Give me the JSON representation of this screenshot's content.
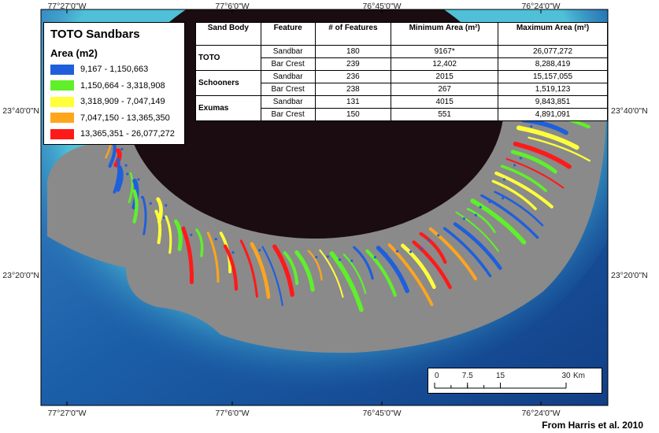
{
  "map": {
    "coordinates": {
      "top": [
        "77°27'0\"W",
        "77°6'0\"W",
        "76°45'0\"W",
        "76°24'0\"W"
      ],
      "bottom": [
        "77°27'0\"W",
        "77°6'0\"W",
        "76°45'0\"W",
        "76°24'0\"W"
      ],
      "left": [
        "23°40'0\"N",
        "23°20'0\"N"
      ],
      "right": [
        "23°40'0\"N",
        "23°20'0\"N"
      ]
    },
    "legend": {
      "title": "TOTO Sandbars",
      "subtitle": "Area (m2)",
      "items": [
        {
          "label": "9,167 - 1,150,663",
          "color": "#1f5fdc"
        },
        {
          "label": "1,150,664 - 3,318,908",
          "color": "#5ff02a"
        },
        {
          "label": "3,318,909 - 7,047,149",
          "color": "#ffff3a"
        },
        {
          "label": "7,047,150 - 13,365,350",
          "color": "#ffa51c"
        },
        {
          "label": "13,365,351 - 26,077,272",
          "color": "#ff1a1a"
        }
      ]
    },
    "table": {
      "headers": [
        "Sand Body",
        "Feature",
        "# of Features",
        "Minimum Area (m²)",
        "Maximum Area (m²)"
      ],
      "groups": [
        {
          "sand_body": "TOTO",
          "rows": [
            [
              "Sandbar",
              "180",
              "9167*",
              "26,077,272"
            ],
            [
              "Bar Crest",
              "239",
              "12,402",
              "8,288,419"
            ]
          ]
        },
        {
          "sand_body": "Schooners",
          "rows": [
            [
              "Sandbar",
              "236",
              "2015",
              "15,157,055"
            ],
            [
              "Bar Crest",
              "238",
              "267",
              "1,519,123"
            ]
          ]
        },
        {
          "sand_body": "Exumas",
          "rows": [
            [
              "Sandbar",
              "131",
              "4015",
              "9,843,851"
            ],
            [
              "Bar Crest",
              "150",
              "551",
              "4,891,091"
            ]
          ]
        }
      ]
    },
    "scale_bar": {
      "ticks": [
        0,
        7.5,
        15,
        30
      ],
      "unit": "Km"
    },
    "credit": "From Harris et al. 2010"
  }
}
